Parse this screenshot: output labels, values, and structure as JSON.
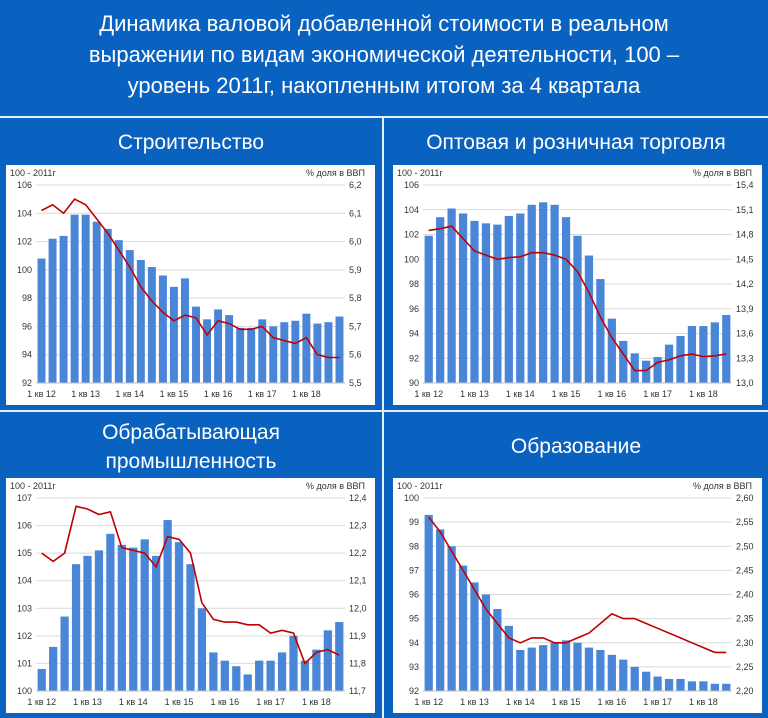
{
  "title_lines": [
    "Динамика валовой добавленной стоимости в реальном",
    "выражении по видам экономической деятельности, 100 –",
    "уровень 2011г, накопленным итогом за 4 квартала"
  ],
  "colors": {
    "background": "#0a62c0",
    "bars": "#4a86d8",
    "line": "#c00000"
  },
  "chart_data": [
    {
      "type": "bar",
      "title": "Строительство",
      "left_axis_label": "100 - 2011г",
      "right_axis_label": "%  доля в ВВП",
      "ylim": [
        92,
        106
      ],
      "yticks": [
        "92",
        "94",
        "96",
        "98",
        "100",
        "102",
        "104",
        "106"
      ],
      "y2lim": [
        5.5,
        6.2
      ],
      "y2ticks": [
        "5,5",
        "5,6",
        "5,7",
        "5,8",
        "5,9",
        "6,0",
        "6,1",
        "6,2"
      ],
      "xticks": [
        "1 кв 12",
        "1 кв 13",
        "1 кв 14",
        "1 кв 15",
        "1 кв 16",
        "1 кв 17",
        "1 кв 18"
      ],
      "series": [
        {
          "kind": "bar",
          "values": [
            100.8,
            102.2,
            102.4,
            103.9,
            103.9,
            103.4,
            102.9,
            102.1,
            101.4,
            100.7,
            100.2,
            99.6,
            98.8,
            99.4,
            97.4,
            96.5,
            97.2,
            96.8,
            95.9,
            95.9,
            96.5,
            96.0,
            96.3,
            96.4,
            96.9,
            96.2,
            96.3,
            96.7
          ]
        },
        {
          "kind": "line",
          "axis": "right",
          "values": [
            6.11,
            6.13,
            6.1,
            6.15,
            6.13,
            6.08,
            6.03,
            5.97,
            5.91,
            5.84,
            5.79,
            5.75,
            5.72,
            5.74,
            5.73,
            5.67,
            5.72,
            5.71,
            5.69,
            5.69,
            5.7,
            5.66,
            5.65,
            5.64,
            5.66,
            5.6,
            5.59,
            5.59
          ]
        }
      ]
    },
    {
      "type": "bar",
      "title": "Оптовая и розничная торговля",
      "left_axis_label": "100 - 2011г",
      "right_axis_label": "%  доля в ВВП",
      "ylim": [
        90,
        106
      ],
      "yticks": [
        "90",
        "92",
        "94",
        "96",
        "98",
        "100",
        "102",
        "104",
        "106"
      ],
      "y2lim": [
        13.0,
        15.4
      ],
      "y2ticks": [
        "13,0",
        "13,3",
        "13,6",
        "13,9",
        "14,2",
        "14,5",
        "14,8",
        "15,1",
        "15,4"
      ],
      "xticks": [
        "1 кв 12",
        "1 кв 13",
        "1 кв 14",
        "1 кв 15",
        "1 кв 16",
        "1 кв 17",
        "1 кв 18"
      ],
      "series": [
        {
          "kind": "bar",
          "values": [
            101.9,
            103.4,
            104.1,
            103.7,
            103.1,
            102.9,
            102.8,
            103.5,
            103.7,
            104.4,
            104.6,
            104.4,
            103.4,
            101.9,
            100.3,
            98.4,
            95.2,
            93.4,
            92.4,
            91.8,
            92.1,
            93.1,
            93.8,
            94.6,
            94.6,
            94.9,
            95.5
          ]
        },
        {
          "kind": "line",
          "axis": "right",
          "values": [
            14.85,
            14.87,
            14.9,
            14.75,
            14.6,
            14.55,
            14.5,
            14.52,
            14.53,
            14.58,
            14.58,
            14.55,
            14.5,
            14.35,
            14.1,
            13.8,
            13.55,
            13.35,
            13.15,
            13.15,
            13.25,
            13.28,
            13.33,
            13.35,
            13.32,
            13.33,
            13.35
          ]
        }
      ]
    },
    {
      "type": "bar",
      "title": "Обрабатывающая промышленность",
      "title_lines": [
        "Обрабатывающая",
        "промышленность"
      ],
      "left_axis_label": "100 - 2011г",
      "right_axis_label": "%  доля в ВВП",
      "ylim": [
        100,
        107
      ],
      "yticks": [
        "100",
        "101",
        "102",
        "103",
        "104",
        "105",
        "106",
        "107"
      ],
      "y2lim": [
        11.7,
        12.4
      ],
      "y2ticks": [
        "11,7",
        "11,8",
        "11,9",
        "12,0",
        "12,1",
        "12,2",
        "12,3",
        "12,4"
      ],
      "xticks": [
        "1 кв 12",
        "1 кв 13",
        "1 кв 14",
        "1 кв 15",
        "1 кв 16",
        "1 кв 17",
        "1 кв 18"
      ],
      "series": [
        {
          "kind": "bar",
          "values": [
            100.8,
            101.6,
            102.7,
            104.6,
            104.9,
            105.1,
            105.7,
            105.3,
            105.2,
            105.5,
            104.9,
            106.2,
            105.4,
            104.6,
            103.0,
            101.4,
            101.1,
            100.9,
            100.6,
            101.1,
            101.1,
            101.4,
            102.0,
            101.1,
            101.5,
            102.2,
            102.5
          ]
        },
        {
          "kind": "line",
          "axis": "right",
          "values": [
            12.2,
            12.17,
            12.2,
            12.37,
            12.36,
            12.34,
            12.35,
            12.22,
            12.21,
            12.2,
            12.15,
            12.26,
            12.25,
            12.2,
            12.02,
            11.96,
            11.95,
            11.95,
            11.94,
            11.94,
            11.91,
            11.92,
            11.91,
            11.8,
            11.84,
            11.85,
            11.83
          ]
        }
      ]
    },
    {
      "type": "bar",
      "title": "Образование",
      "left_axis_label": "100 - 2011г",
      "right_axis_label": "%  доля в ВВП",
      "ylim": [
        92,
        100
      ],
      "yticks": [
        "92",
        "93",
        "94",
        "95",
        "96",
        "97",
        "98",
        "99",
        "100"
      ],
      "y2lim": [
        2.2,
        2.6
      ],
      "y2ticks": [
        "2,20",
        "2,25",
        "2,30",
        "2,35",
        "2,40",
        "2,45",
        "2,50",
        "2,55",
        "2,60"
      ],
      "xticks": [
        "1 кв 12",
        "1 кв 13",
        "1 кв 14",
        "1 кв 15",
        "1 кв 16",
        "1 кв 17",
        "1 кв 18"
      ],
      "series": [
        {
          "kind": "bar",
          "values": [
            99.3,
            98.7,
            98.0,
            97.2,
            96.5,
            96.0,
            95.4,
            94.7,
            93.7,
            93.8,
            93.9,
            94.0,
            94.1,
            94.0,
            93.8,
            93.7,
            93.5,
            93.3,
            93.0,
            92.8,
            92.6,
            92.5,
            92.5,
            92.4,
            92.4,
            92.3,
            92.3
          ]
        },
        {
          "kind": "line",
          "axis": "right",
          "values": [
            2.56,
            2.53,
            2.49,
            2.45,
            2.41,
            2.37,
            2.34,
            2.31,
            2.3,
            2.31,
            2.31,
            2.3,
            2.3,
            2.31,
            2.32,
            2.34,
            2.36,
            2.35,
            2.35,
            2.34,
            2.33,
            2.32,
            2.31,
            2.3,
            2.29,
            2.28,
            2.28
          ]
        }
      ]
    }
  ]
}
